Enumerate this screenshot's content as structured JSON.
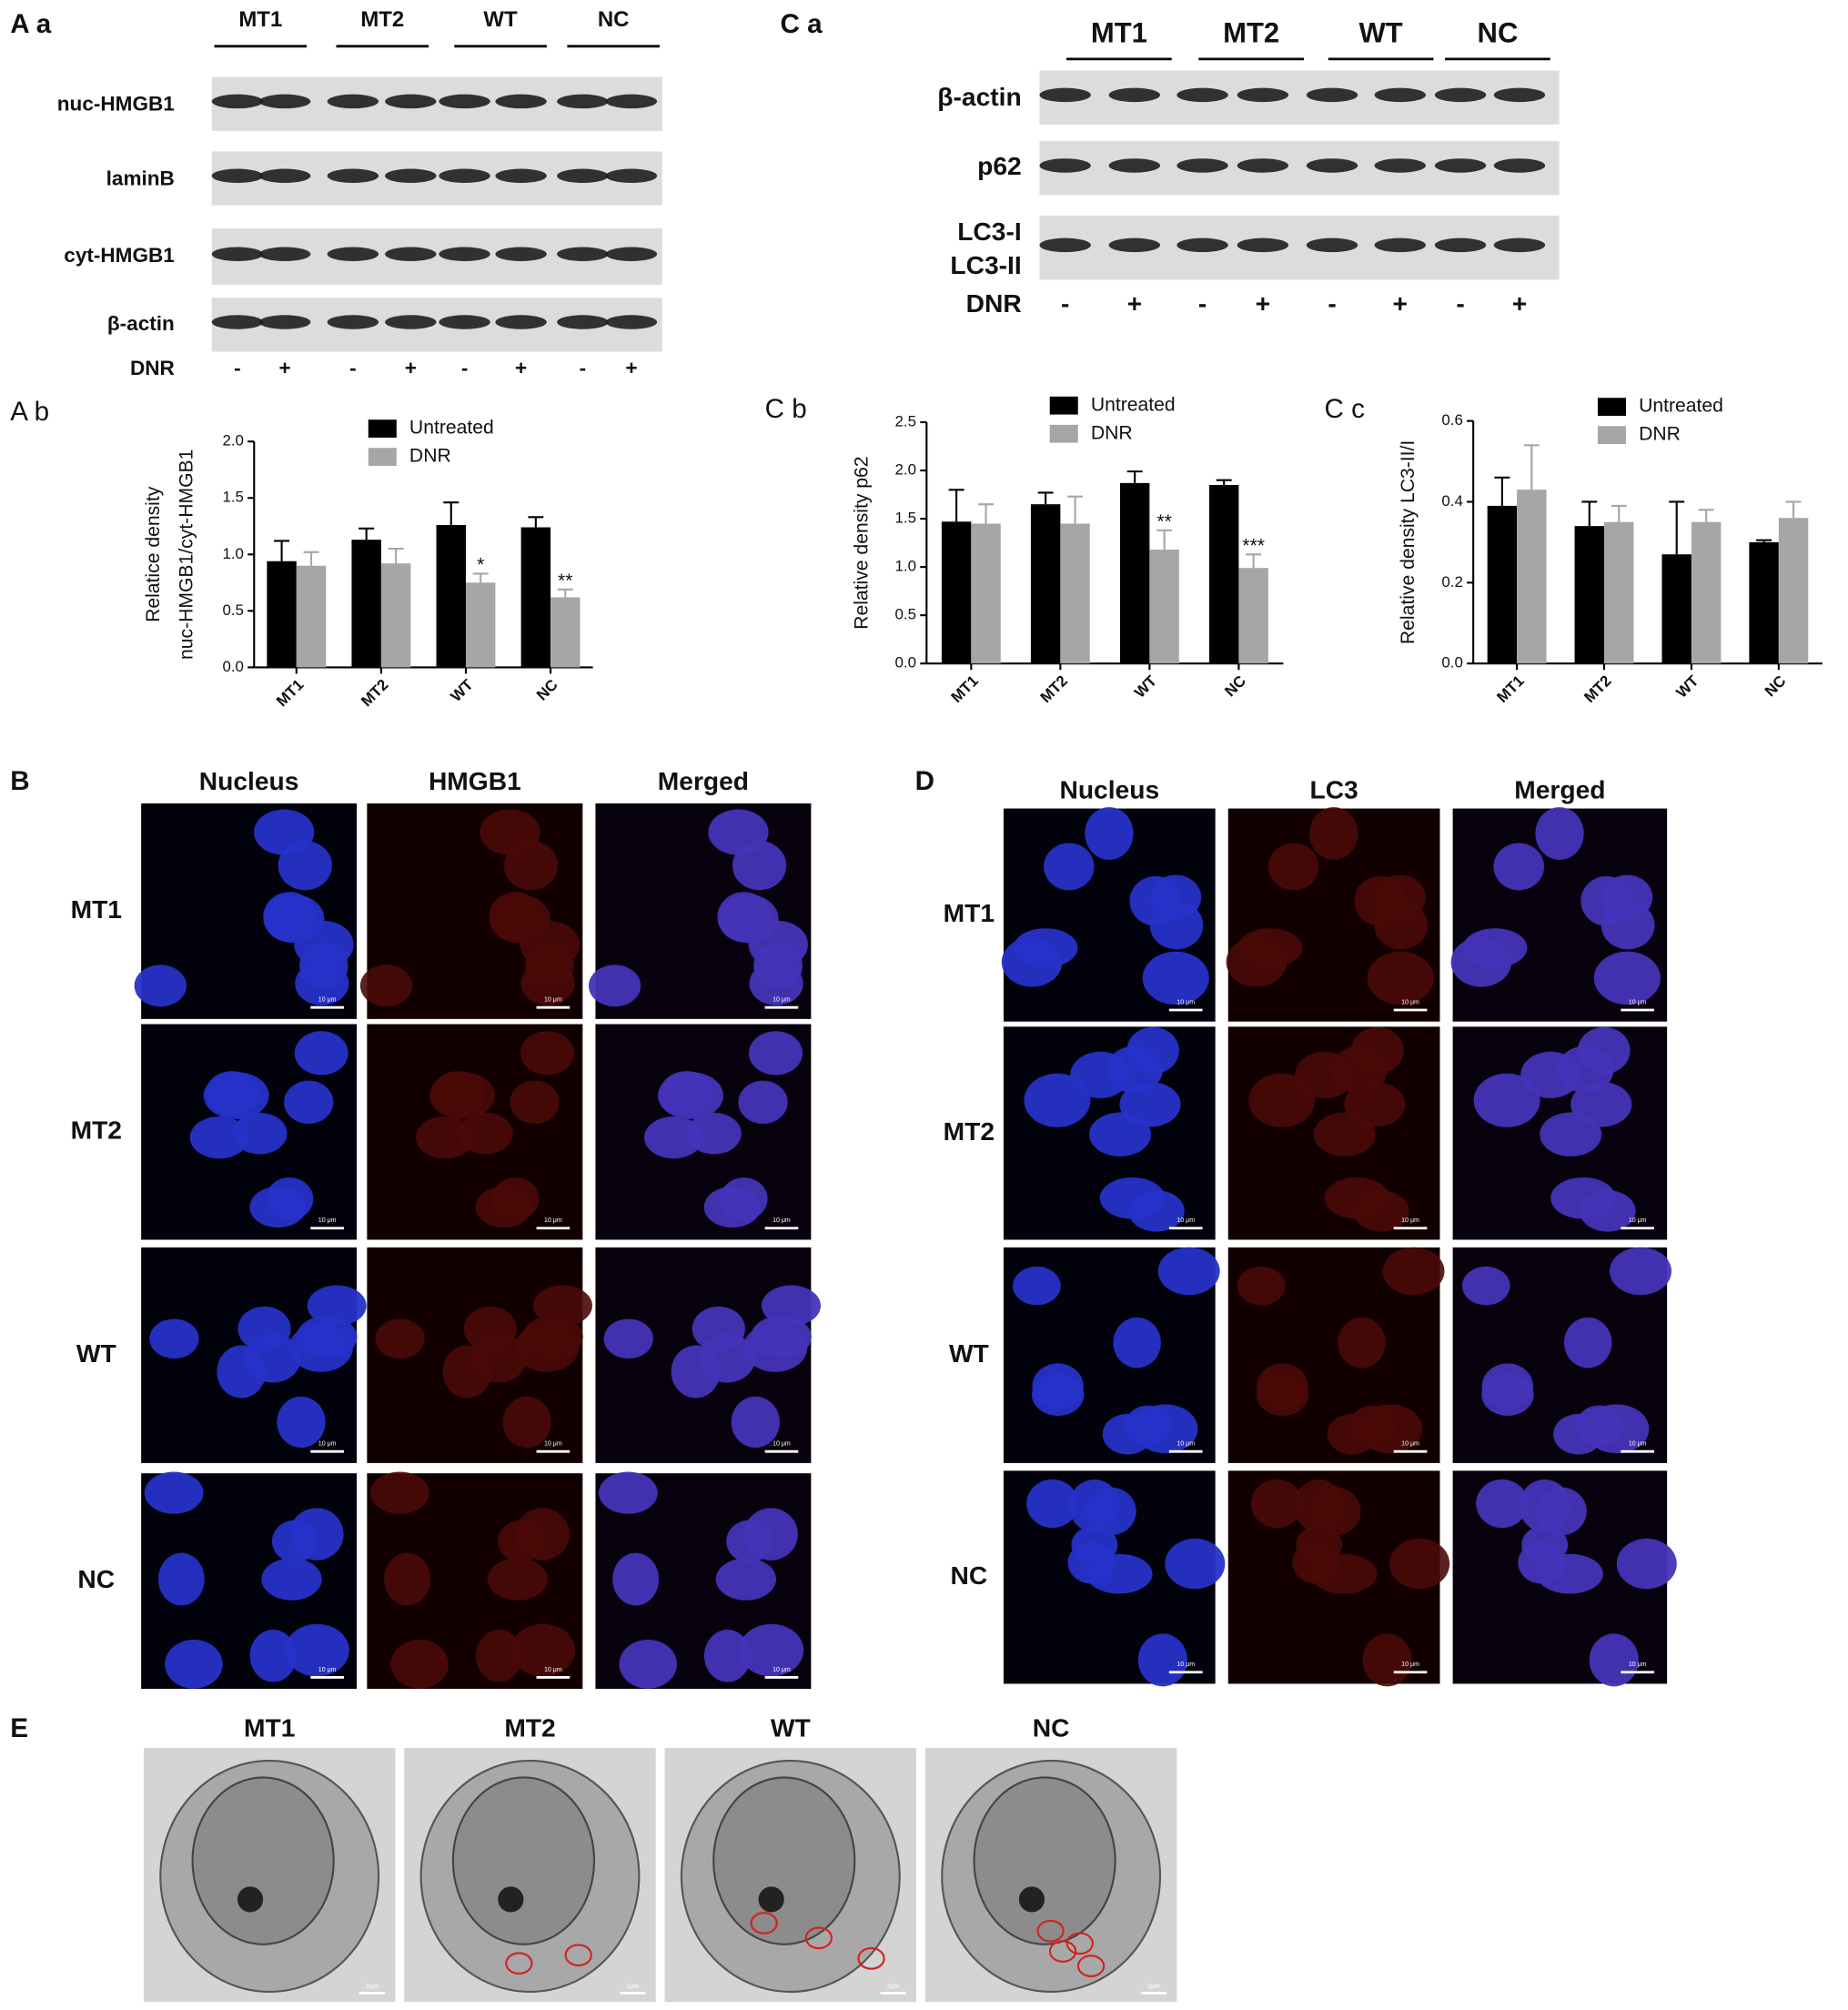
{
  "panels": {
    "Aa": {
      "label": "A a",
      "groups": [
        "MT1",
        "MT2",
        "WT",
        "NC"
      ],
      "rows": [
        "nuc-HMGB1",
        "laminB",
        "cyt-HMGB1",
        "β-actin"
      ],
      "treatment": "DNR",
      "signs": [
        "-",
        "+",
        "-",
        "+",
        "-",
        "+",
        "-",
        "+"
      ]
    },
    "Ca": {
      "label": "C a",
      "groups": [
        "MT1",
        "MT2",
        "WT",
        "NC"
      ],
      "rows": [
        "β-actin",
        "p62",
        "LC3-I",
        "LC3-II"
      ],
      "treatment": "DNR",
      "signs": [
        "-",
        "+",
        "-",
        "+",
        "-",
        "+",
        "-",
        "+"
      ]
    },
    "B": {
      "label": "B",
      "columns": [
        "Nucleus",
        "HMGB1",
        "Merged"
      ],
      "rows": [
        "MT1",
        "MT2",
        "WT",
        "NC"
      ],
      "scale_bar": "10 μm"
    },
    "D": {
      "label": "D",
      "columns": [
        "Nucleus",
        "LC3",
        "Merged"
      ],
      "rows": [
        "MT1",
        "MT2",
        "WT",
        "NC"
      ],
      "scale_bar": "10 μm"
    },
    "E": {
      "label": "E",
      "columns": [
        "MT1",
        "MT2",
        "WT",
        "NC"
      ],
      "scale_bar": "2μm"
    }
  },
  "chart_data": [
    {
      "type": "bar",
      "label": "A b",
      "y_label": [
        "Relatice density",
        "nuc-HMGB1/cyt-HMGB1"
      ],
      "categories": [
        "MT1",
        "MT2",
        "WT",
        "NC"
      ],
      "series": [
        {
          "name": "Untreated",
          "color": "#000000",
          "values": [
            0.94,
            1.13,
            1.26,
            1.24
          ],
          "errors": [
            0.18,
            0.1,
            0.2,
            0.09
          ],
          "annotations": [
            null,
            null,
            null,
            null
          ]
        },
        {
          "name": "DNR",
          "color": "#a6a6a6",
          "values": [
            0.9,
            0.92,
            0.75,
            0.62
          ],
          "errors": [
            0.12,
            0.13,
            0.08,
            0.07
          ],
          "annotations": [
            null,
            null,
            "*",
            "**"
          ]
        }
      ],
      "ylim": [
        0,
        2.0
      ],
      "yticks": [
        {
          "value": 0,
          "label": "0.0"
        },
        0.5,
        {
          "value": 1,
          "label": "1.0"
        },
        1.5,
        {
          "value": 2,
          "label": "2.0"
        }
      ],
      "grid": false
    },
    {
      "type": "bar",
      "label": "C b",
      "y_label": [
        "Relative  density p62"
      ],
      "categories": [
        "MT1",
        "MT2",
        "WT",
        "NC"
      ],
      "series": [
        {
          "name": "Untreated",
          "color": "#000000",
          "values": [
            1.47,
            1.65,
            1.87,
            1.85
          ],
          "errors": [
            0.33,
            0.12,
            0.12,
            0.05
          ],
          "annotations": [
            null,
            null,
            null,
            null
          ]
        },
        {
          "name": "DNR",
          "color": "#a6a6a6",
          "values": [
            1.45,
            1.45,
            1.18,
            0.99
          ],
          "errors": [
            0.2,
            0.28,
            0.2,
            0.14
          ],
          "annotations": [
            null,
            null,
            "**",
            "***"
          ]
        }
      ],
      "ylim": [
        0,
        2.5
      ],
      "yticks": [
        {
          "value": 0,
          "label": "0.0"
        },
        0.5,
        {
          "value": 1,
          "label": "1.0"
        },
        1.5,
        {
          "value": 2,
          "label": "2.0"
        },
        2.5
      ],
      "grid": false
    },
    {
      "type": "bar",
      "label": "C c",
      "y_label": [
        "Relative density LC3-II/I"
      ],
      "categories": [
        "MT1",
        "MT2",
        "WT",
        "NC"
      ],
      "series": [
        {
          "name": "Untreated",
          "color": "#000000",
          "values": [
            0.39,
            0.34,
            0.27,
            0.3
          ],
          "errors": [
            0.07,
            0.06,
            0.13,
            0.005
          ],
          "annotations": [
            null,
            null,
            null,
            null
          ]
        },
        {
          "name": "DNR",
          "color": "#a6a6a6",
          "values": [
            0.43,
            0.35,
            0.35,
            0.36
          ],
          "errors": [
            0.11,
            0.04,
            0.03,
            0.04
          ],
          "annotations": [
            null,
            null,
            null,
            null
          ]
        }
      ],
      "ylim": [
        0,
        0.6
      ],
      "yticks": [
        {
          "value": 0,
          "label": "0.0"
        },
        0.2,
        0.4,
        0.6
      ],
      "grid": false
    }
  ]
}
